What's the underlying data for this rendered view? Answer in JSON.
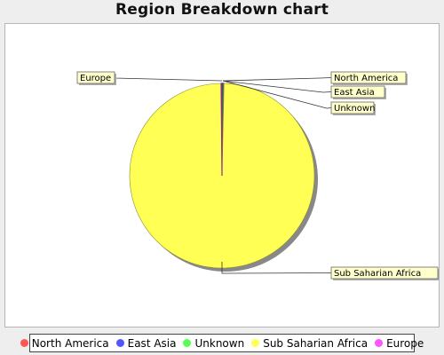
{
  "chart_data": {
    "type": "pie",
    "title": "Region Breakdown chart",
    "categories": [
      "North America",
      "East Asia",
      "Unknown",
      "Sub Saharian Africa",
      "Europe"
    ],
    "values": [
      0.15,
      0.1,
      0.1,
      99.5,
      0.15
    ],
    "colors": [
      "#ff5555",
      "#5555ff",
      "#55ff55",
      "#ffff55",
      "#ff55ff"
    ],
    "legend_position": "bottom",
    "label_side": {
      "North America": "right",
      "East Asia": "right",
      "Unknown": "right",
      "Sub Saharian Africa": "right",
      "Europe": "left"
    }
  }
}
